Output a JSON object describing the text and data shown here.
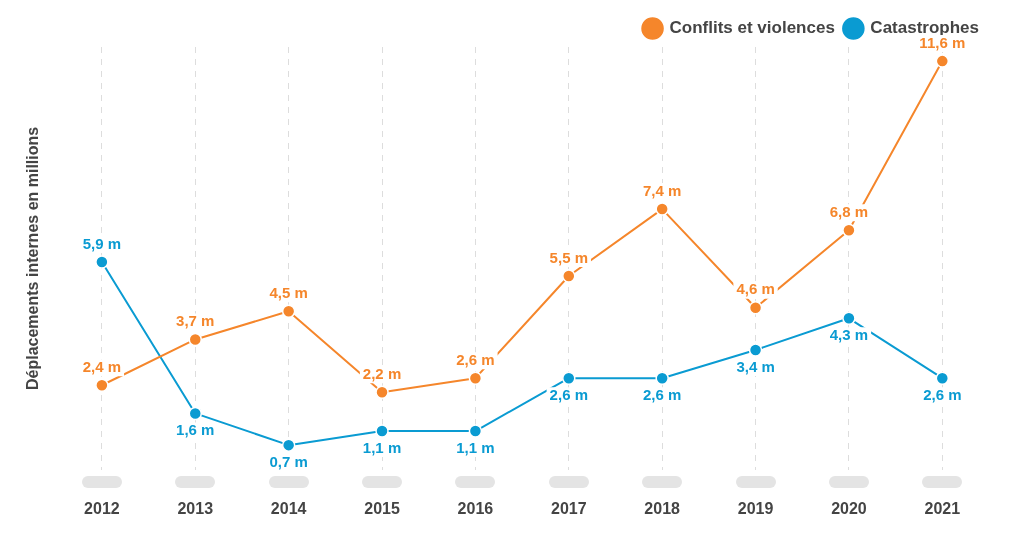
{
  "chart_data": {
    "type": "line",
    "ylabel": "Déplacements internes en millions",
    "categories": [
      "2012",
      "2013",
      "2014",
      "2015",
      "2016",
      "2017",
      "2018",
      "2019",
      "2020",
      "2021"
    ],
    "series": [
      {
        "name": "Conflits et violences",
        "color": "#f5862b",
        "values": [
          2.4,
          3.7,
          4.5,
          2.2,
          2.6,
          5.5,
          7.4,
          4.6,
          6.8,
          11.6
        ],
        "value_labels": [
          "2,4 m",
          "3,7 m",
          "4,5 m",
          "2,2 m",
          "2,6 m",
          "5,5 m",
          "7,4 m",
          "4,6 m",
          "6,8 m",
          "11,6 m"
        ]
      },
      {
        "name": "Catastrophes",
        "color": "#0a9bd2",
        "values": [
          5.9,
          1.6,
          0.7,
          1.1,
          1.1,
          2.6,
          2.6,
          3.4,
          4.3,
          2.6
        ],
        "value_labels": [
          "5,9 m",
          "1,6 m",
          "0,7 m",
          "1,1 m",
          "1,1 m",
          "2,6 m",
          "2,6 m",
          "3,4 m",
          "4,3 m",
          "2,6 m"
        ]
      }
    ],
    "grid": "x",
    "legend": "top right",
    "marker": "circle",
    "line_style": "solid",
    "tick_labels": "x"
  }
}
